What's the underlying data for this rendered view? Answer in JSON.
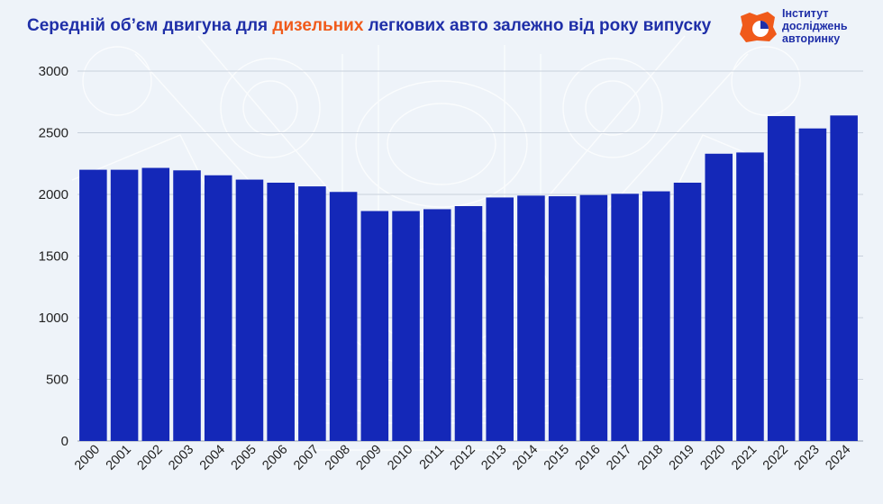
{
  "header": {
    "title_before": "Середній об’єм двигуна для ",
    "title_highlight": "дизельних",
    "title_after": " легкових авто залежно від року випуску"
  },
  "logo": {
    "line1": "Інститут",
    "line2": "досліджень",
    "line3": "авторинку",
    "icon": "map-chart-icon"
  },
  "colors": {
    "bar": "#1428b8",
    "accent": "#f05a1a",
    "title": "#1f2fa8"
  },
  "chart_data": {
    "type": "bar",
    "title": "Середній об’єм двигуна для дизельних легкових авто залежно від року випуску",
    "xlabel": "",
    "ylabel": "",
    "ylim": [
      0,
      3000
    ],
    "yticks": [
      0,
      500,
      1000,
      1500,
      2000,
      2500,
      3000
    ],
    "grid": true,
    "categories": [
      "2000",
      "2001",
      "2002",
      "2003",
      "2004",
      "2005",
      "2006",
      "2007",
      "2008",
      "2009",
      "2010",
      "2011",
      "2012",
      "2013",
      "2014",
      "2015",
      "2016",
      "2017",
      "2018",
      "2019",
      "2020",
      "2021",
      "2022",
      "2023",
      "2024"
    ],
    "values": [
      2200,
      2200,
      2215,
      2195,
      2155,
      2120,
      2095,
      2065,
      2020,
      1865,
      1865,
      1880,
      1905,
      1975,
      1990,
      1985,
      1995,
      2005,
      2025,
      2095,
      2330,
      2340,
      2635,
      2535,
      2640
    ]
  }
}
